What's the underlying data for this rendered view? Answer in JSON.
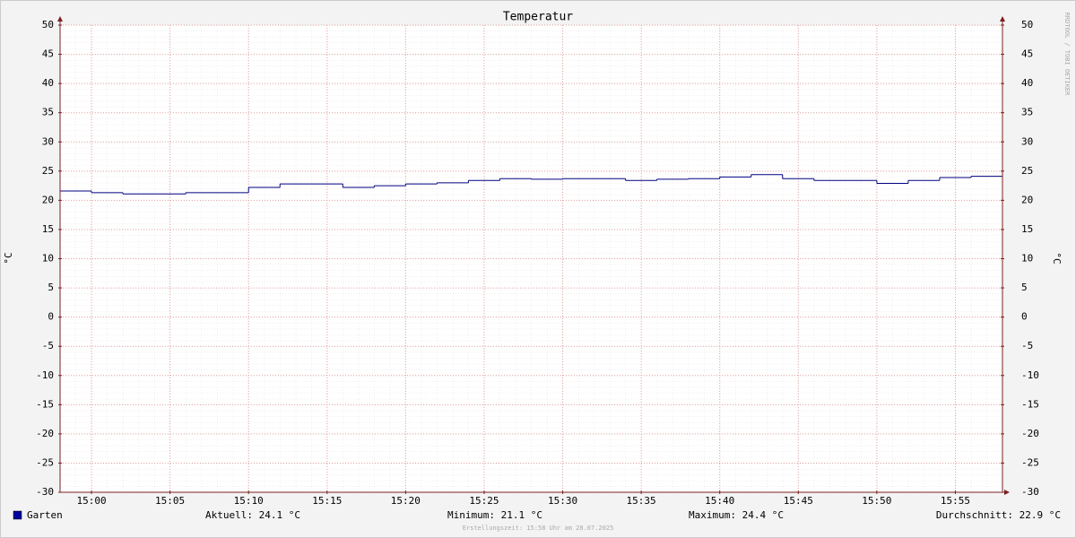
{
  "chart_data": {
    "type": "line",
    "step": true,
    "title": "Temperatur",
    "y_label": "°C",
    "y2_label": "°C",
    "watermark": "RRDTOOL / TOBI OETIKER",
    "footer": "Erstellungszeit: 15:58 Uhr am 28.07.2025",
    "x": [
      "14:58",
      "15:00",
      "15:02",
      "15:06",
      "15:10",
      "15:12",
      "15:16",
      "15:18",
      "15:20",
      "15:22",
      "15:24",
      "15:26",
      "15:28",
      "15:30",
      "15:34",
      "15:36",
      "15:38",
      "15:40",
      "15:42",
      "15:44",
      "15:46",
      "15:50",
      "15:52",
      "15:54",
      "15:56"
    ],
    "xlim": [
      "14:58",
      "15:58"
    ],
    "xticks": [
      "15:00",
      "15:05",
      "15:10",
      "15:15",
      "15:20",
      "15:25",
      "15:30",
      "15:35",
      "15:40",
      "15:45",
      "15:50",
      "15:55"
    ],
    "series": [
      {
        "name": "Garten",
        "color": "#000080",
        "legend_color": "#0000a0",
        "values": [
          21.6,
          21.3,
          21.1,
          21.3,
          22.2,
          22.8,
          22.2,
          22.5,
          22.8,
          23.0,
          23.4,
          23.7,
          23.6,
          23.7,
          23.4,
          23.6,
          23.7,
          24.0,
          24.4,
          23.7,
          23.4,
          22.9,
          23.4,
          23.9,
          24.1
        ]
      }
    ],
    "ylim": [
      -30,
      50
    ],
    "yticks": [
      -30,
      -25,
      -20,
      -15,
      -10,
      -5,
      0,
      5,
      10,
      15,
      20,
      25,
      30,
      35,
      40,
      45,
      50
    ],
    "grid": true,
    "stats": [
      "Aktuell: 24.1 °C",
      "Minimum: 21.1 °C",
      "Maximum: 24.4 °C",
      "Durchschnitt: 22.9 °C"
    ]
  }
}
